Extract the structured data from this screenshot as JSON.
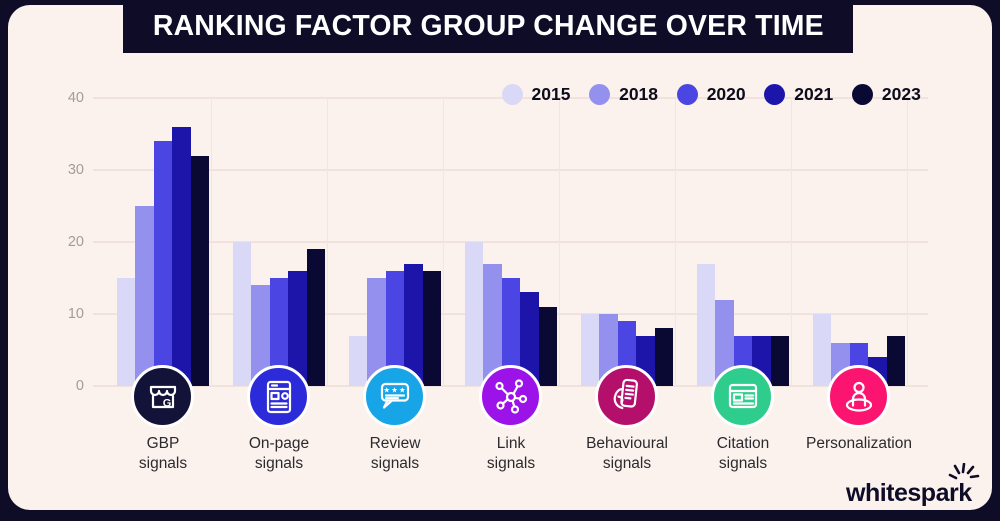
{
  "title": "RANKING FACTOR GROUP CHANGE OVER TIME",
  "brand": "whitespark",
  "colors": {
    "frame": "#0E0C26",
    "panel_background": "#FBF1ED",
    "gridline": "#F2E2DE",
    "axis_text": "#A39C9C",
    "label_text": "#2B2A2E"
  },
  "chart_data": {
    "type": "bar",
    "title": "RANKING FACTOR GROUP CHANGE OVER TIME",
    "categories": [
      "GBP signals",
      "On-page signals",
      "Review signals",
      "Link signals",
      "Behavioural signals",
      "Citation signals",
      "Personalization"
    ],
    "series": [
      {
        "name": "2015",
        "color": "#D9D8F6",
        "values": [
          15,
          20,
          7,
          20,
          10,
          17,
          10
        ]
      },
      {
        "name": "2018",
        "color": "#9490EE",
        "values": [
          25,
          14,
          15,
          17,
          10,
          12,
          6
        ]
      },
      {
        "name": "2020",
        "color": "#4B45E3",
        "values": [
          34,
          15,
          16,
          15,
          9,
          7,
          6
        ]
      },
      {
        "name": "2021",
        "color": "#1D15A9",
        "values": [
          36,
          16,
          17,
          13,
          7,
          7,
          4
        ]
      },
      {
        "name": "2023",
        "color": "#0A0933",
        "values": [
          32,
          19,
          16,
          11,
          8,
          7,
          7
        ]
      }
    ],
    "ylim": [
      0,
      40
    ],
    "yticks": [
      0,
      10,
      20,
      30,
      40
    ],
    "grid": true,
    "legend_position": "top-right"
  },
  "groups": [
    {
      "label_line1": "GBP",
      "label_line2": "signals",
      "icon": "storefront-icon",
      "icon_color": "#131238"
    },
    {
      "label_line1": "On-page",
      "label_line2": "signals",
      "icon": "webpage-icon",
      "icon_color": "#2B2BD9"
    },
    {
      "label_line1": "Review",
      "label_line2": "signals",
      "icon": "review-bubble-icon",
      "icon_color": "#17A5E8"
    },
    {
      "label_line1": "Link",
      "label_line2": "signals",
      "icon": "link-network-icon",
      "icon_color": "#9C13E9"
    },
    {
      "label_line1": "Behavioural",
      "label_line2": "signals",
      "icon": "phone-hand-icon",
      "icon_color": "#B50F6C"
    },
    {
      "label_line1": "Citation",
      "label_line2": "signals",
      "icon": "citation-listing-icon",
      "icon_color": "#2FCD8D"
    },
    {
      "label_line1": "Personalization",
      "label_line2": "",
      "icon": "person-location-icon",
      "icon_color": "#FB1570"
    }
  ]
}
